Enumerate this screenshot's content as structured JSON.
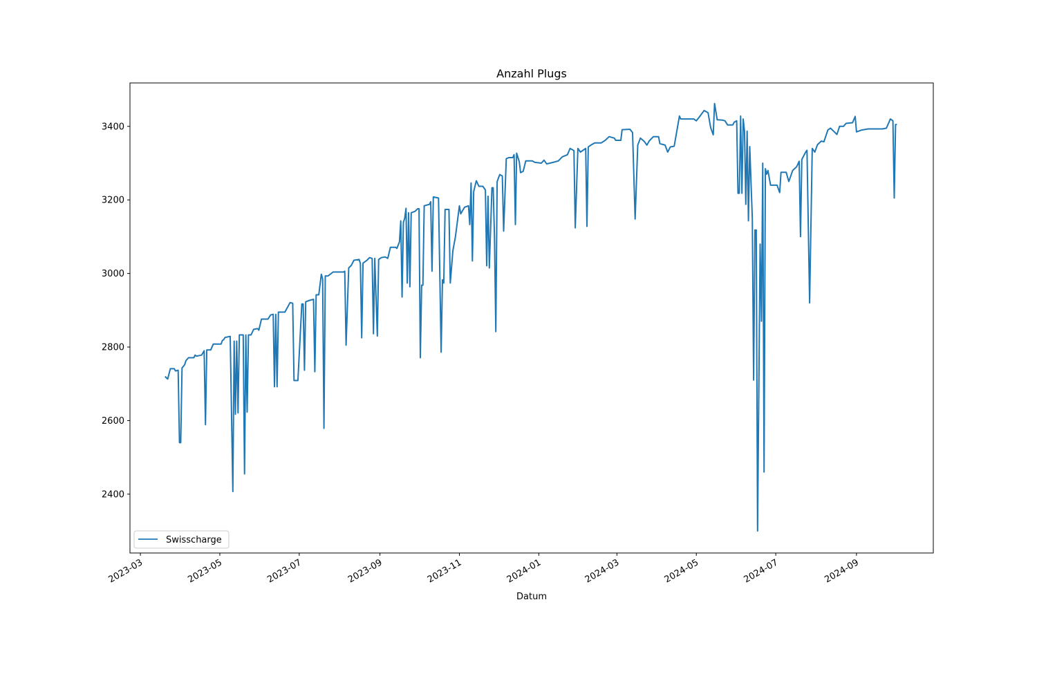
{
  "chart_data": {
    "type": "line",
    "title": "Anzahl Plugs",
    "xlabel": "Datum",
    "ylabel": "",
    "xlim": [
      "2023-02-21",
      "2024-10-30"
    ],
    "ylim": [
      2240,
      3518
    ],
    "yticks": [
      2400,
      2600,
      2800,
      3000,
      3200,
      3400
    ],
    "xticks": [
      "2023-03",
      "2023-05",
      "2023-07",
      "2023-09",
      "2023-11",
      "2024-01",
      "2024-03",
      "2024-05",
      "2024-07",
      "2024-09"
    ],
    "grid": false,
    "legend": {
      "position": "lower-left",
      "entries": [
        "Swisscharge"
      ]
    },
    "series": [
      {
        "name": "Swisscharge",
        "color": "#1f77b4",
        "points": [
          [
            "2023-03-20",
            2720
          ],
          [
            "2023-03-21",
            2716
          ],
          [
            "2023-03-22",
            2713
          ],
          [
            "2023-03-24",
            2741
          ],
          [
            "2023-03-27",
            2741
          ],
          [
            "2023-03-28",
            2735
          ],
          [
            "2023-03-30",
            2737
          ],
          [
            "2023-03-31",
            2540
          ],
          [
            "2023-04-01",
            2540
          ],
          [
            "2023-04-02",
            2743
          ],
          [
            "2023-04-04",
            2752
          ],
          [
            "2023-04-05",
            2763
          ],
          [
            "2023-04-07",
            2771
          ],
          [
            "2023-04-11",
            2771
          ],
          [
            "2023-04-12",
            2778
          ],
          [
            "2023-04-13",
            2775
          ],
          [
            "2023-04-17",
            2778
          ],
          [
            "2023-04-19",
            2790
          ],
          [
            "2023-04-20",
            2589
          ],
          [
            "2023-04-21",
            2792
          ],
          [
            "2023-04-24",
            2792
          ],
          [
            "2023-04-26",
            2808
          ],
          [
            "2023-05-02",
            2808
          ],
          [
            "2023-05-03",
            2818
          ],
          [
            "2023-05-04",
            2820
          ],
          [
            "2023-05-05",
            2826
          ],
          [
            "2023-05-09",
            2829
          ],
          [
            "2023-05-11",
            2407
          ],
          [
            "2023-05-12",
            2816
          ],
          [
            "2023-05-13",
            2617
          ],
          [
            "2023-05-14",
            2816
          ],
          [
            "2023-05-15",
            2621
          ],
          [
            "2023-05-16",
            2833
          ],
          [
            "2023-05-19",
            2833
          ],
          [
            "2023-05-20",
            2455
          ],
          [
            "2023-05-21",
            2833
          ],
          [
            "2023-05-22",
            2623
          ],
          [
            "2023-05-23",
            2833
          ],
          [
            "2023-05-25",
            2833
          ],
          [
            "2023-05-27",
            2848
          ],
          [
            "2023-05-30",
            2850
          ],
          [
            "2023-05-31",
            2846
          ],
          [
            "2023-06-02",
            2876
          ],
          [
            "2023-06-07",
            2876
          ],
          [
            "2023-06-09",
            2887
          ],
          [
            "2023-06-11",
            2889
          ],
          [
            "2023-06-12",
            2692
          ],
          [
            "2023-06-13",
            2889
          ],
          [
            "2023-06-14",
            2692
          ],
          [
            "2023-06-15",
            2895
          ],
          [
            "2023-06-20",
            2895
          ],
          [
            "2023-06-24",
            2921
          ],
          [
            "2023-06-26",
            2919
          ],
          [
            "2023-06-27",
            2709
          ],
          [
            "2023-06-30",
            2709
          ],
          [
            "2023-07-03",
            2917
          ],
          [
            "2023-07-04",
            2917
          ],
          [
            "2023-07-05",
            2737
          ],
          [
            "2023-07-06",
            2923
          ],
          [
            "2023-07-09",
            2927
          ],
          [
            "2023-07-12",
            2930
          ],
          [
            "2023-07-13",
            2733
          ],
          [
            "2023-07-14",
            2942
          ],
          [
            "2023-07-16",
            2942
          ],
          [
            "2023-07-18",
            2998
          ],
          [
            "2023-07-19",
            2985
          ],
          [
            "2023-07-20",
            2579
          ],
          [
            "2023-07-21",
            2993
          ],
          [
            "2023-07-23",
            2993
          ],
          [
            "2023-07-27",
            3004
          ],
          [
            "2023-08-04",
            3004
          ],
          [
            "2023-08-05",
            3006
          ],
          [
            "2023-08-06",
            2805
          ],
          [
            "2023-08-08",
            3015
          ],
          [
            "2023-08-10",
            3022
          ],
          [
            "2023-08-12",
            3036
          ],
          [
            "2023-08-16",
            3038
          ],
          [
            "2023-08-17",
            3027
          ],
          [
            "2023-08-18",
            2825
          ],
          [
            "2023-08-19",
            3028
          ],
          [
            "2023-08-22",
            3036
          ],
          [
            "2023-08-24",
            3043
          ],
          [
            "2023-08-26",
            3041
          ],
          [
            "2023-08-27",
            2836
          ],
          [
            "2023-08-28",
            3041
          ],
          [
            "2023-08-30",
            2830
          ],
          [
            "2023-08-31",
            3038
          ],
          [
            "2023-09-02",
            3043
          ],
          [
            "2023-09-05",
            3045
          ],
          [
            "2023-09-07",
            3041
          ],
          [
            "2023-09-09",
            3071
          ],
          [
            "2023-09-13",
            3071
          ],
          [
            "2023-09-14",
            3068
          ],
          [
            "2023-09-16",
            3086
          ],
          [
            "2023-09-17",
            3143
          ],
          [
            "2023-09-18",
            2936
          ],
          [
            "2023-09-19",
            3139
          ],
          [
            "2023-09-20",
            3150
          ],
          [
            "2023-09-21",
            3177
          ],
          [
            "2023-09-22",
            2974
          ],
          [
            "2023-09-23",
            3165
          ],
          [
            "2023-09-24",
            2964
          ],
          [
            "2023-09-25",
            3165
          ],
          [
            "2023-09-28",
            3169
          ],
          [
            "2023-09-30",
            3176
          ],
          [
            "2023-10-01",
            3176
          ],
          [
            "2023-10-02",
            2771
          ],
          [
            "2023-10-03",
            2968
          ],
          [
            "2023-10-04",
            2968
          ],
          [
            "2023-10-05",
            3184
          ],
          [
            "2023-10-09",
            3188
          ],
          [
            "2023-10-10",
            3195
          ],
          [
            "2023-10-11",
            3006
          ],
          [
            "2023-10-12",
            3208
          ],
          [
            "2023-10-16",
            3205
          ],
          [
            "2023-10-18",
            2786
          ],
          [
            "2023-10-19",
            2983
          ],
          [
            "2023-10-20",
            2974
          ],
          [
            "2023-10-21",
            3174
          ],
          [
            "2023-10-24",
            3174
          ],
          [
            "2023-10-25",
            2974
          ],
          [
            "2023-10-27",
            3062
          ],
          [
            "2023-10-29",
            3100
          ],
          [
            "2023-11-01",
            3184
          ],
          [
            "2023-11-02",
            3162
          ],
          [
            "2023-11-05",
            3180
          ],
          [
            "2023-11-08",
            3184
          ],
          [
            "2023-11-09",
            3133
          ],
          [
            "2023-11-10",
            3246
          ],
          [
            "2023-11-11",
            3034
          ],
          [
            "2023-11-12",
            3223
          ],
          [
            "2023-11-14",
            3252
          ],
          [
            "2023-11-16",
            3237
          ],
          [
            "2023-11-19",
            3237
          ],
          [
            "2023-11-21",
            3227
          ],
          [
            "2023-11-22",
            3021
          ],
          [
            "2023-11-23",
            3210
          ],
          [
            "2023-11-24",
            3015
          ],
          [
            "2023-11-26",
            3233
          ],
          [
            "2023-11-27",
            3233
          ],
          [
            "2023-11-28",
            3096
          ],
          [
            "2023-11-29",
            2842
          ],
          [
            "2023-11-30",
            3250
          ],
          [
            "2023-12-02",
            3269
          ],
          [
            "2023-12-04",
            3265
          ],
          [
            "2023-12-05",
            3115
          ],
          [
            "2023-12-07",
            3312
          ],
          [
            "2023-12-09",
            3315
          ],
          [
            "2023-12-12",
            3315
          ],
          [
            "2023-12-13",
            3323
          ],
          [
            "2023-12-14",
            3133
          ],
          [
            "2023-12-15",
            3327
          ],
          [
            "2023-12-17",
            3304
          ],
          [
            "2023-12-18",
            3274
          ],
          [
            "2023-12-20",
            3278
          ],
          [
            "2023-12-22",
            3306
          ],
          [
            "2023-12-27",
            3306
          ],
          [
            "2023-12-29",
            3302
          ],
          [
            "2024-01-03",
            3300
          ],
          [
            "2024-01-05",
            3308
          ],
          [
            "2024-01-07",
            3298
          ],
          [
            "2024-01-12",
            3302
          ],
          [
            "2024-01-16",
            3306
          ],
          [
            "2024-01-19",
            3317
          ],
          [
            "2024-01-23",
            3323
          ],
          [
            "2024-01-25",
            3340
          ],
          [
            "2024-01-28",
            3334
          ],
          [
            "2024-01-29",
            3124
          ],
          [
            "2024-01-31",
            3340
          ],
          [
            "2024-02-02",
            3330
          ],
          [
            "2024-02-06",
            3340
          ],
          [
            "2024-02-07",
            3128
          ],
          [
            "2024-02-08",
            3344
          ],
          [
            "2024-02-10",
            3349
          ],
          [
            "2024-02-13",
            3355
          ],
          [
            "2024-02-18",
            3355
          ],
          [
            "2024-02-21",
            3362
          ],
          [
            "2024-02-24",
            3372
          ],
          [
            "2024-02-28",
            3368
          ],
          [
            "2024-02-29",
            3362
          ],
          [
            "2024-03-04",
            3362
          ],
          [
            "2024-03-05",
            3391
          ],
          [
            "2024-03-11",
            3392
          ],
          [
            "2024-03-13",
            3383
          ],
          [
            "2024-03-15",
            3148
          ],
          [
            "2024-03-17",
            3349
          ],
          [
            "2024-03-19",
            3368
          ],
          [
            "2024-03-22",
            3359
          ],
          [
            "2024-03-24",
            3349
          ],
          [
            "2024-03-26",
            3361
          ],
          [
            "2024-03-29",
            3372
          ],
          [
            "2024-04-02",
            3372
          ],
          [
            "2024-04-03",
            3353
          ],
          [
            "2024-04-07",
            3349
          ],
          [
            "2024-04-09",
            3330
          ],
          [
            "2024-04-11",
            3344
          ],
          [
            "2024-04-14",
            3346
          ],
          [
            "2024-04-16",
            3387
          ],
          [
            "2024-04-18",
            3428
          ],
          [
            "2024-04-19",
            3420
          ],
          [
            "2024-04-24",
            3420
          ],
          [
            "2024-04-29",
            3420
          ],
          [
            "2024-05-01",
            3415
          ],
          [
            "2024-05-03",
            3424
          ],
          [
            "2024-05-07",
            3443
          ],
          [
            "2024-05-10",
            3437
          ],
          [
            "2024-05-12",
            3396
          ],
          [
            "2024-05-14",
            3377
          ],
          [
            "2024-05-15",
            3462
          ],
          [
            "2024-05-17",
            3418
          ],
          [
            "2024-05-21",
            3417
          ],
          [
            "2024-05-23",
            3415
          ],
          [
            "2024-05-25",
            3404
          ],
          [
            "2024-05-29",
            3404
          ],
          [
            "2024-05-30",
            3411
          ],
          [
            "2024-06-01",
            3415
          ],
          [
            "2024-06-02",
            3218
          ],
          [
            "2024-06-03",
            3218
          ],
          [
            "2024-06-04",
            3428
          ],
          [
            "2024-06-05",
            3218
          ],
          [
            "2024-06-06",
            3420
          ],
          [
            "2024-06-07",
            3387
          ],
          [
            "2024-06-08",
            3188
          ],
          [
            "2024-06-09",
            3387
          ],
          [
            "2024-06-10",
            3143
          ],
          [
            "2024-06-11",
            3345
          ],
          [
            "2024-06-13",
            3150
          ],
          [
            "2024-06-14",
            2710
          ],
          [
            "2024-06-15",
            3118
          ],
          [
            "2024-06-16",
            3118
          ],
          [
            "2024-06-17",
            2300
          ],
          [
            "2024-06-19",
            3080
          ],
          [
            "2024-06-20",
            2870
          ],
          [
            "2024-06-21",
            3300
          ],
          [
            "2024-06-22",
            2460
          ],
          [
            "2024-06-23",
            3285
          ],
          [
            "2024-06-24",
            3270
          ],
          [
            "2024-06-25",
            3280
          ],
          [
            "2024-06-27",
            3240
          ],
          [
            "2024-07-02",
            3240
          ],
          [
            "2024-07-04",
            3220
          ],
          [
            "2024-07-05",
            3275
          ],
          [
            "2024-07-09",
            3275
          ],
          [
            "2024-07-11",
            3250
          ],
          [
            "2024-07-14",
            3280
          ],
          [
            "2024-07-17",
            3290
          ],
          [
            "2024-07-19",
            3305
          ],
          [
            "2024-07-20",
            3100
          ],
          [
            "2024-07-21",
            3310
          ],
          [
            "2024-07-24",
            3330
          ],
          [
            "2024-07-25",
            3335
          ],
          [
            "2024-07-27",
            2920
          ],
          [
            "2024-07-29",
            3340
          ],
          [
            "2024-07-31",
            3330
          ],
          [
            "2024-08-02",
            3350
          ],
          [
            "2024-08-05",
            3360
          ],
          [
            "2024-08-07",
            3358
          ],
          [
            "2024-08-10",
            3390
          ],
          [
            "2024-08-12",
            3395
          ],
          [
            "2024-08-15",
            3385
          ],
          [
            "2024-08-17",
            3378
          ],
          [
            "2024-08-19",
            3400
          ],
          [
            "2024-08-22",
            3400
          ],
          [
            "2024-08-24",
            3408
          ],
          [
            "2024-08-29",
            3410
          ],
          [
            "2024-08-31",
            3427
          ],
          [
            "2024-09-01",
            3385
          ],
          [
            "2024-09-05",
            3390
          ],
          [
            "2024-09-10",
            3393
          ],
          [
            "2024-09-16",
            3393
          ],
          [
            "2024-09-21",
            3393
          ],
          [
            "2024-09-24",
            3395
          ],
          [
            "2024-09-27",
            3420
          ],
          [
            "2024-09-29",
            3415
          ],
          [
            "2024-09-30",
            3205
          ],
          [
            "2024-10-01",
            3405
          ],
          [
            "2024-10-02",
            3405
          ]
        ]
      }
    ]
  }
}
